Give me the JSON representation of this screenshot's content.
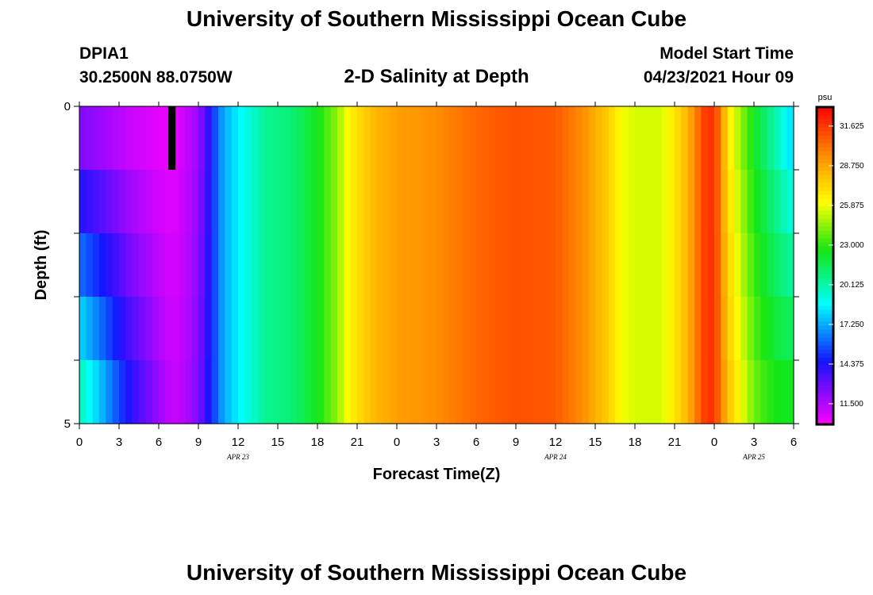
{
  "header": {
    "title": "University of Southern Mississippi Ocean Cube",
    "station": "DPIA1",
    "coordinates": "30.2500N  88.0750W",
    "plot_title": "2-D Salinity at Depth",
    "model_start_label": "Model Start Time",
    "model_start_value": "04/23/2021 Hour 09"
  },
  "footer": {
    "title": "University of Southern Mississippi Ocean Cube"
  },
  "chart_data": {
    "type": "heatmap",
    "title": "2-D Salinity at Depth",
    "xlabel": "Forecast Time(Z)",
    "ylabel": "Depth (ft)",
    "x_hours_range": [
      0,
      54
    ],
    "x_tick_labels": [
      "0",
      "3",
      "6",
      "9",
      "12",
      "15",
      "18",
      "21",
      "0",
      "3",
      "6",
      "9",
      "12",
      "15",
      "18",
      "21",
      "0",
      "3",
      "6"
    ],
    "date_labels": [
      {
        "hour": 12,
        "label": "APR 23"
      },
      {
        "hour": 36,
        "label": "APR 24"
      },
      {
        "hour": 51,
        "label": "APR 25"
      }
    ],
    "y_range": [
      0,
      5
    ],
    "y_tick_labels": [
      "0",
      "5"
    ],
    "depth_levels": 5,
    "colorbar": {
      "unit": "psu",
      "min": 10,
      "max": 33,
      "tick_values": [
        31.625,
        28.75,
        25.875,
        23.0,
        20.125,
        17.25,
        14.375,
        11.5
      ],
      "tick_labels": [
        "31.625",
        "28.750",
        "25.875",
        "23.000",
        "20.125",
        "17.250",
        "14.375",
        "11.500"
      ]
    },
    "salinity_profile": {
      "hours": [
        0,
        2,
        4,
        6,
        7,
        8,
        9,
        9.6,
        10.2,
        10.8,
        11.5,
        12.5,
        14,
        16,
        18,
        19.5,
        20.5,
        22,
        24,
        27,
        30,
        33,
        36,
        38,
        40,
        41,
        42,
        44,
        45.5,
        46.5,
        47,
        47.6,
        48.2,
        49,
        50,
        51,
        52,
        53,
        54
      ],
      "surface": [
        12.5,
        11.8,
        11.0,
        10.5,
        10.5,
        11.0,
        12.0,
        13.5,
        15.5,
        17.0,
        18.0,
        19.0,
        20.5,
        21.0,
        22.5,
        24.5,
        26.5,
        28.0,
        29.0,
        29.5,
        30.5,
        31.0,
        30.8,
        29.5,
        27.5,
        26.0,
        25.5,
        25.5,
        27.5,
        29.5,
        31.0,
        32.0,
        31.0,
        27.0,
        24.5,
        22.5,
        21.0,
        19.5,
        18.0
      ],
      "bottom": [
        20.0,
        17.0,
        14.0,
        12.0,
        11.0,
        11.5,
        12.5,
        14.0,
        15.5,
        17.0,
        18.0,
        19.0,
        20.5,
        21.0,
        22.5,
        24.5,
        26.5,
        28.0,
        29.0,
        29.5,
        30.5,
        31.0,
        30.8,
        29.5,
        27.5,
        26.0,
        25.5,
        25.5,
        27.5,
        29.5,
        31.0,
        32.0,
        31.0,
        28.0,
        26.0,
        24.0,
        23.0,
        22.5,
        22.5
      ]
    },
    "gap": {
      "hour": 7,
      "depth_from": 0,
      "depth_to": 1
    }
  }
}
